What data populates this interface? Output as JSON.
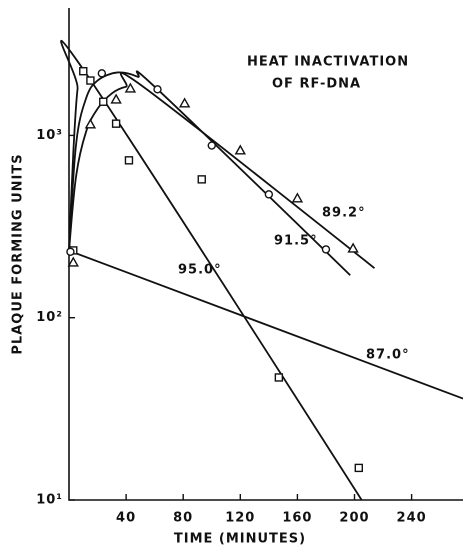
{
  "chart_data": {
    "type": "scatter",
    "title": [
      "HEAT INACTIVATION",
      "OF RF-DNA"
    ],
    "x_label": "TIME (MINUTES)",
    "y_label": "PLAQUE FORMING UNITS",
    "xlim": [
      0,
      276
    ],
    "xticks": [
      40,
      80,
      120,
      160,
      200,
      240
    ],
    "ylim": [
      10,
      5000
    ],
    "log_y": true,
    "yticks": [
      {
        "value": 10,
        "label": "10¹"
      },
      {
        "value": 100,
        "label": "10²"
      },
      {
        "value": 1000,
        "label": "10³"
      }
    ],
    "color": "#111111",
    "series": [
      {
        "marker": "square",
        "x": [
          3,
          10,
          15,
          24,
          33,
          42,
          93,
          147,
          203
        ],
        "values": [
          234,
          2250,
          2000,
          1530,
          1160,
          730,
          574,
          47,
          15
        ]
      },
      {
        "marker": "circle",
        "x": [
          1,
          23,
          62,
          100,
          140,
          180
        ],
        "values": [
          230,
          2190,
          1790,
          880,
          475,
          237
        ]
      },
      {
        "marker": "triangle",
        "x": [
          3,
          15,
          33,
          43,
          81,
          120,
          160,
          199
        ],
        "values": [
          201,
          1150,
          1575,
          1810,
          1500,
          828,
          452,
          240
        ]
      }
    ],
    "curves": [
      {
        "name": "95.0°",
        "x": [
          0,
          3,
          6,
          10,
          205
        ],
        "values": [
          230,
          800,
          1800,
          2300,
          10
        ]
      },
      {
        "name": "91.5°",
        "x": [
          0,
          5,
          12,
          20,
          34,
          48,
          62,
          197
        ],
        "values": [
          230,
          900,
          1600,
          2000,
          2215,
          2100,
          1790,
          171
        ]
      },
      {
        "name": "89.2°",
        "x": [
          0,
          5,
          12,
          20,
          30,
          40,
          52,
          214
        ],
        "values": [
          230,
          600,
          1050,
          1400,
          1700,
          1850,
          1850,
          187
        ]
      },
      {
        "name": "87.0°",
        "x": [
          2,
          276
        ],
        "values": [
          230,
          36
        ]
      }
    ]
  }
}
